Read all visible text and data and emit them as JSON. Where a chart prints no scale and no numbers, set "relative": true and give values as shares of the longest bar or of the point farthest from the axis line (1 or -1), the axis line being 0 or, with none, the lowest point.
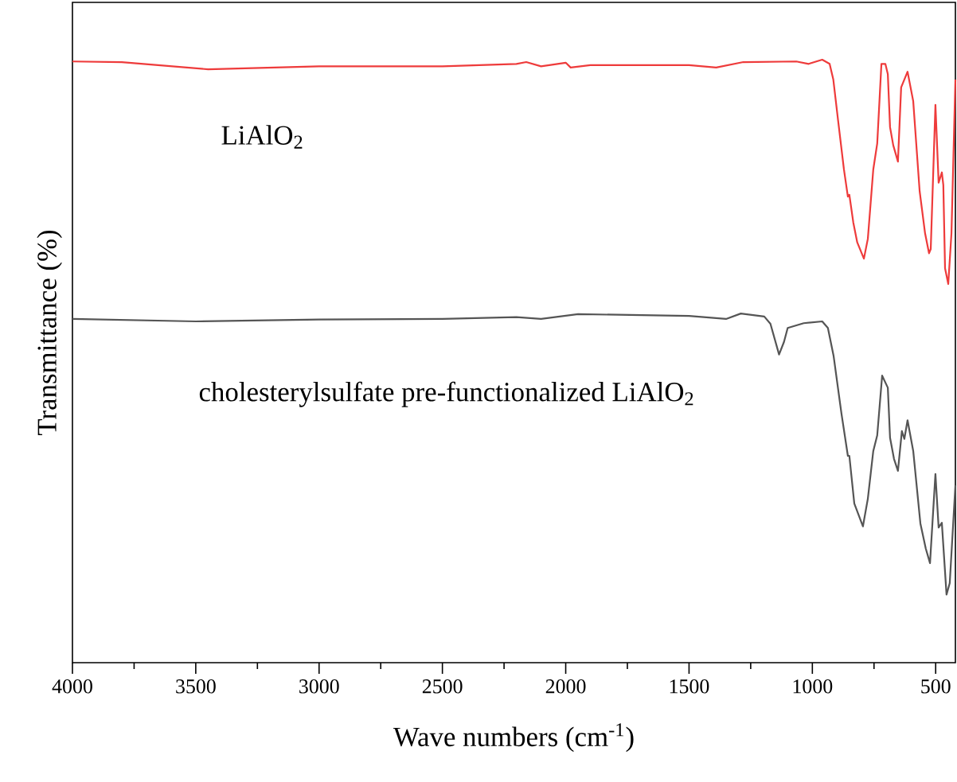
{
  "chart_data": {
    "type": "line",
    "relative": true,
    "xlabel": "Wave numbers (cm$^{-1}$)",
    "ylabel": "Transmittance (%)",
    "xlim": [
      4000,
      420
    ],
    "xticks": [
      4000,
      3500,
      3000,
      2500,
      2000,
      1500,
      1000,
      500
    ],
    "series": [
      {
        "name": "LiAlO$_{2}$",
        "color": "#ee3b3b",
        "x": [
          4000,
          3800,
          3450,
          3000,
          2500,
          2200,
          2160,
          2100,
          2000,
          1980,
          1900,
          1500,
          1390,
          1280,
          1065,
          1015,
          960,
          930,
          915,
          895,
          872,
          856,
          850,
          834,
          818,
          791,
          775,
          753,
          737,
          720,
          704,
          694,
          685,
          672,
          653,
          640,
          614,
          591,
          565,
          543,
          527,
          520,
          501,
          488,
          475,
          469,
          462,
          449,
          436,
          420
        ],
        "values": [
          0.997,
          0.996,
          0.984,
          0.989,
          0.989,
          0.993,
          0.996,
          0.989,
          0.995,
          0.987,
          0.991,
          0.991,
          0.987,
          0.996,
          0.997,
          0.993,
          1.0,
          0.993,
          0.967,
          0.897,
          0.818,
          0.773,
          0.776,
          0.73,
          0.697,
          0.67,
          0.703,
          0.818,
          0.861,
          0.993,
          0.993,
          0.976,
          0.888,
          0.858,
          0.831,
          0.954,
          0.98,
          0.931,
          0.782,
          0.712,
          0.679,
          0.686,
          0.925,
          0.796,
          0.813,
          0.792,
          0.654,
          0.628,
          0.712,
          0.967
        ]
      },
      {
        "name": "cholesterylsulfate pre-functionalized LiAlO$_{2}$",
        "color": "#555555",
        "x": [
          4000,
          3500,
          3000,
          2500,
          2200,
          2100,
          1950,
          1500,
          1350,
          1290,
          1195,
          1170,
          1135,
          1115,
          1100,
          1035,
          960,
          937,
          914,
          882,
          856,
          850,
          830,
          795,
          775,
          753,
          737,
          717,
          694,
          685,
          669,
          653,
          637,
          627,
          614,
          591,
          562,
          540,
          523,
          501,
          488,
          475,
          456,
          443,
          420
        ],
        "values": [
          0.57,
          0.566,
          0.569,
          0.57,
          0.573,
          0.57,
          0.578,
          0.575,
          0.57,
          0.579,
          0.574,
          0.562,
          0.511,
          0.532,
          0.555,
          0.563,
          0.566,
          0.555,
          0.509,
          0.413,
          0.343,
          0.343,
          0.264,
          0.226,
          0.272,
          0.351,
          0.377,
          0.476,
          0.456,
          0.373,
          0.338,
          0.318,
          0.384,
          0.371,
          0.402,
          0.351,
          0.231,
          0.189,
          0.165,
          0.313,
          0.224,
          0.232,
          0.113,
          0.132,
          0.294
        ]
      }
    ]
  }
}
